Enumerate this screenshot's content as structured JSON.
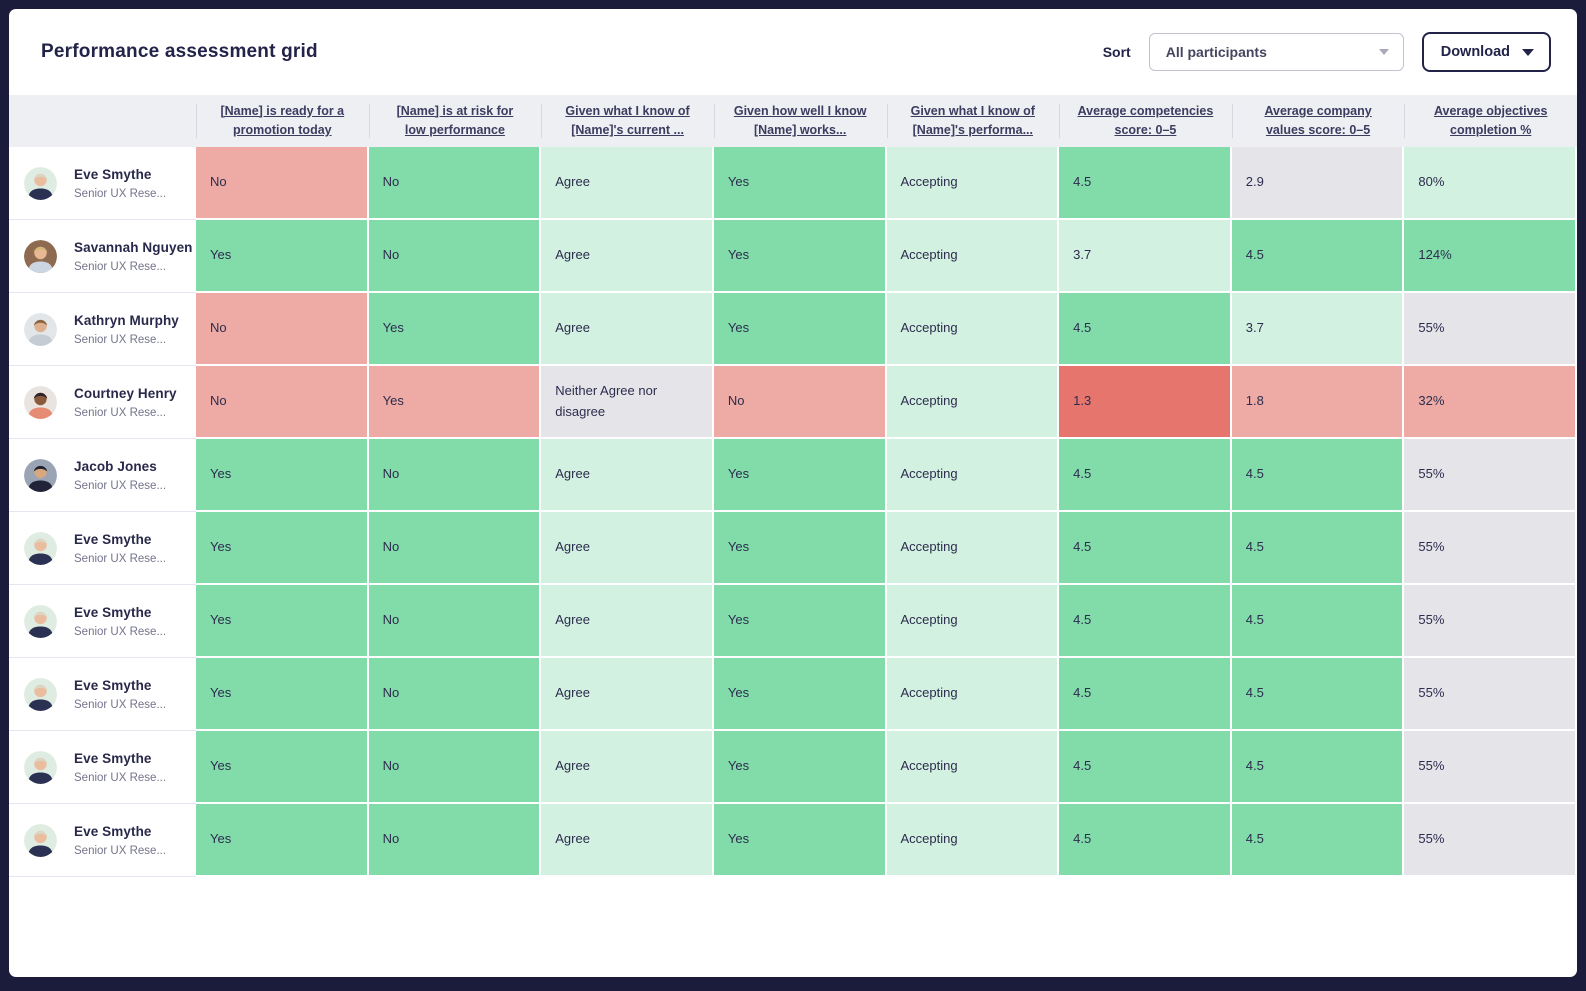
{
  "header": {
    "title": "Performance assessment grid",
    "sort_label": "Sort",
    "sort_value": "All participants",
    "download_label": "Download"
  },
  "colors": {
    "green": "#82dcaa",
    "lightgreen": "#d3f1e0",
    "pink": "#eeaba5",
    "red": "#e5756d",
    "gray": "#e5e5e9",
    "header_bg": "#eeeff2",
    "frame": "#1b1b3b",
    "text": "#232349"
  },
  "icons": {
    "sort_caret": "chevron-down-icon",
    "download_caret": "chevron-down-icon"
  },
  "table": {
    "columns": [
      {
        "label": ""
      },
      {
        "label": "[Name] is ready for a promotion today"
      },
      {
        "label": "[Name] is at risk for low performance"
      },
      {
        "label": "Given what I know of [Name]'s current ..."
      },
      {
        "label": "Given how well I know [Name] works..."
      },
      {
        "label": "Given what I know of [Name]'s performa..."
      },
      {
        "label": "Average competencies score: 0–5"
      },
      {
        "label": "Average company values score: 0–5"
      },
      {
        "label": "Average objectives completion %"
      }
    ],
    "rows": [
      {
        "name": "Eve Smythe",
        "role": "Senior UX Rese...",
        "avatar": {
          "bg": "#dfece2",
          "skin": "#e9bd9d",
          "hair": "#ddd5c3",
          "top": "#2b3152"
        },
        "cells": [
          {
            "value": "No",
            "tone": "pink"
          },
          {
            "value": "No",
            "tone": "green"
          },
          {
            "value": "Agree",
            "tone": "lightgreen"
          },
          {
            "value": "Yes",
            "tone": "green"
          },
          {
            "value": "Accepting",
            "tone": "lightgreen"
          },
          {
            "value": "4.5",
            "tone": "green"
          },
          {
            "value": "2.9",
            "tone": "gray"
          },
          {
            "value": "80%",
            "tone": "lightgreen"
          }
        ]
      },
      {
        "name": "Savannah Nguyen",
        "role": "Senior UX Rese...",
        "avatar": {
          "bg": "#8d6a50",
          "skin": "#e8b894",
          "hair": "#d8b77e",
          "top": "#ccd6e2"
        },
        "cells": [
          {
            "value": "Yes",
            "tone": "green"
          },
          {
            "value": "No",
            "tone": "green"
          },
          {
            "value": "Agree",
            "tone": "lightgreen"
          },
          {
            "value": "Yes",
            "tone": "green"
          },
          {
            "value": "Accepting",
            "tone": "lightgreen"
          },
          {
            "value": "3.7",
            "tone": "lightgreen"
          },
          {
            "value": "4.5",
            "tone": "green"
          },
          {
            "value": "124%",
            "tone": "green"
          }
        ]
      },
      {
        "name": "Kathryn Murphy",
        "role": "Senior UX Rese...",
        "avatar": {
          "bg": "#e2e6e9",
          "skin": "#dfb08f",
          "hair": "#8a6744",
          "top": "#c5ccd3"
        },
        "cells": [
          {
            "value": "No",
            "tone": "pink"
          },
          {
            "value": "Yes",
            "tone": "green"
          },
          {
            "value": "Agree",
            "tone": "lightgreen"
          },
          {
            "value": "Yes",
            "tone": "green"
          },
          {
            "value": "Accepting",
            "tone": "lightgreen"
          },
          {
            "value": "4.5",
            "tone": "green"
          },
          {
            "value": "3.7",
            "tone": "lightgreen"
          },
          {
            "value": "55%",
            "tone": "gray"
          }
        ]
      },
      {
        "name": "Courtney Henry",
        "role": "Senior UX Rese...",
        "avatar": {
          "bg": "#e9e4df",
          "skin": "#8a5a3c",
          "hair": "#2b2427",
          "top": "#e68c74"
        },
        "cells": [
          {
            "value": "No",
            "tone": "pink"
          },
          {
            "value": "Yes",
            "tone": "pink"
          },
          {
            "value": "Neither Agree nor disagree",
            "tone": "gray"
          },
          {
            "value": "No",
            "tone": "pink"
          },
          {
            "value": "Accepting",
            "tone": "lightgreen"
          },
          {
            "value": "1.3",
            "tone": "red"
          },
          {
            "value": "1.8",
            "tone": "pink"
          },
          {
            "value": "32%",
            "tone": "pink"
          }
        ]
      },
      {
        "name": "Jacob Jones",
        "role": "Senior UX Rese...",
        "avatar": {
          "bg": "#9aa4b4",
          "skin": "#d9a77e",
          "hair": "#1d2230",
          "top": "#212439"
        },
        "cells": [
          {
            "value": "Yes",
            "tone": "green"
          },
          {
            "value": "No",
            "tone": "green"
          },
          {
            "value": "Agree",
            "tone": "lightgreen"
          },
          {
            "value": "Yes",
            "tone": "green"
          },
          {
            "value": "Accepting",
            "tone": "lightgreen"
          },
          {
            "value": "4.5",
            "tone": "green"
          },
          {
            "value": "4.5",
            "tone": "green"
          },
          {
            "value": "55%",
            "tone": "gray"
          }
        ]
      },
      {
        "name": "Eve Smythe",
        "role": "Senior UX Rese...",
        "avatar": {
          "bg": "#dfece2",
          "skin": "#e9bd9d",
          "hair": "#ddd5c3",
          "top": "#2b3152"
        },
        "cells": [
          {
            "value": "Yes",
            "tone": "green"
          },
          {
            "value": "No",
            "tone": "green"
          },
          {
            "value": "Agree",
            "tone": "lightgreen"
          },
          {
            "value": "Yes",
            "tone": "green"
          },
          {
            "value": "Accepting",
            "tone": "lightgreen"
          },
          {
            "value": "4.5",
            "tone": "green"
          },
          {
            "value": "4.5",
            "tone": "green"
          },
          {
            "value": "55%",
            "tone": "gray"
          }
        ]
      },
      {
        "name": "Eve Smythe",
        "role": "Senior UX Rese...",
        "avatar": {
          "bg": "#dfece2",
          "skin": "#e9bd9d",
          "hair": "#ddd5c3",
          "top": "#2b3152"
        },
        "cells": [
          {
            "value": "Yes",
            "tone": "green"
          },
          {
            "value": "No",
            "tone": "green"
          },
          {
            "value": "Agree",
            "tone": "lightgreen"
          },
          {
            "value": "Yes",
            "tone": "green"
          },
          {
            "value": "Accepting",
            "tone": "lightgreen"
          },
          {
            "value": "4.5",
            "tone": "green"
          },
          {
            "value": "4.5",
            "tone": "green"
          },
          {
            "value": "55%",
            "tone": "gray"
          }
        ]
      },
      {
        "name": "Eve Smythe",
        "role": "Senior UX Rese...",
        "avatar": {
          "bg": "#dfece2",
          "skin": "#e9bd9d",
          "hair": "#ddd5c3",
          "top": "#2b3152"
        },
        "cells": [
          {
            "value": "Yes",
            "tone": "green"
          },
          {
            "value": "No",
            "tone": "green"
          },
          {
            "value": "Agree",
            "tone": "lightgreen"
          },
          {
            "value": "Yes",
            "tone": "green"
          },
          {
            "value": "Accepting",
            "tone": "lightgreen"
          },
          {
            "value": "4.5",
            "tone": "green"
          },
          {
            "value": "4.5",
            "tone": "green"
          },
          {
            "value": "55%",
            "tone": "gray"
          }
        ]
      },
      {
        "name": "Eve Smythe",
        "role": "Senior UX Rese...",
        "avatar": {
          "bg": "#dfece2",
          "skin": "#e9bd9d",
          "hair": "#ddd5c3",
          "top": "#2b3152"
        },
        "cells": [
          {
            "value": "Yes",
            "tone": "green"
          },
          {
            "value": "No",
            "tone": "green"
          },
          {
            "value": "Agree",
            "tone": "lightgreen"
          },
          {
            "value": "Yes",
            "tone": "green"
          },
          {
            "value": "Accepting",
            "tone": "lightgreen"
          },
          {
            "value": "4.5",
            "tone": "green"
          },
          {
            "value": "4.5",
            "tone": "green"
          },
          {
            "value": "55%",
            "tone": "gray"
          }
        ]
      },
      {
        "name": "Eve Smythe",
        "role": "Senior UX Rese...",
        "avatar": {
          "bg": "#dfece2",
          "skin": "#e9bd9d",
          "hair": "#ddd5c3",
          "top": "#2b3152"
        },
        "cells": [
          {
            "value": "Yes",
            "tone": "green"
          },
          {
            "value": "No",
            "tone": "green"
          },
          {
            "value": "Agree",
            "tone": "lightgreen"
          },
          {
            "value": "Yes",
            "tone": "green"
          },
          {
            "value": "Accepting",
            "tone": "lightgreen"
          },
          {
            "value": "4.5",
            "tone": "green"
          },
          {
            "value": "4.5",
            "tone": "green"
          },
          {
            "value": "55%",
            "tone": "gray"
          }
        ]
      }
    ]
  }
}
